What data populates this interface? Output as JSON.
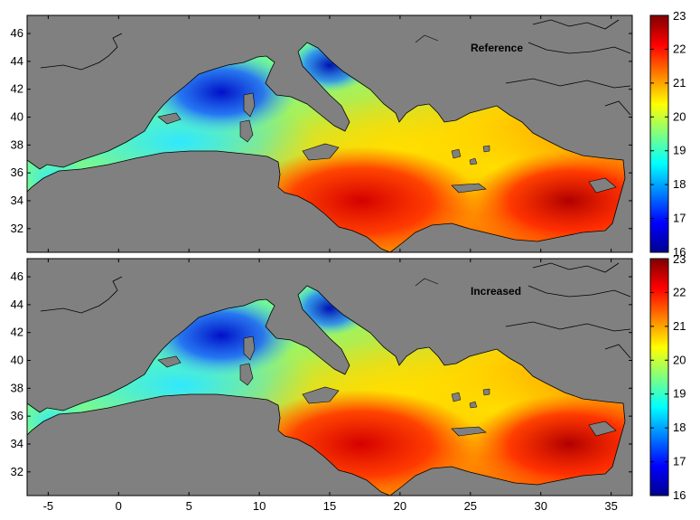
{
  "panels": [
    {
      "label": "Reference"
    },
    {
      "label": "Increased"
    }
  ],
  "map": {
    "lon_range": [
      -6.5,
      36.5
    ],
    "lat_range": [
      30.3,
      47.3
    ],
    "land_color": "#808080",
    "coastline_color": "#000000"
  },
  "axes": {
    "x_ticks": [
      -5,
      0,
      5,
      10,
      15,
      20,
      25,
      30,
      35
    ],
    "y_ticks": [
      32,
      34,
      36,
      38,
      40,
      42,
      44,
      46
    ]
  },
  "colorbar": {
    "min": 16,
    "max": 23,
    "ticks": [
      16,
      17,
      18,
      19,
      20,
      21,
      22,
      23
    ],
    "colormap": "jet"
  }
}
